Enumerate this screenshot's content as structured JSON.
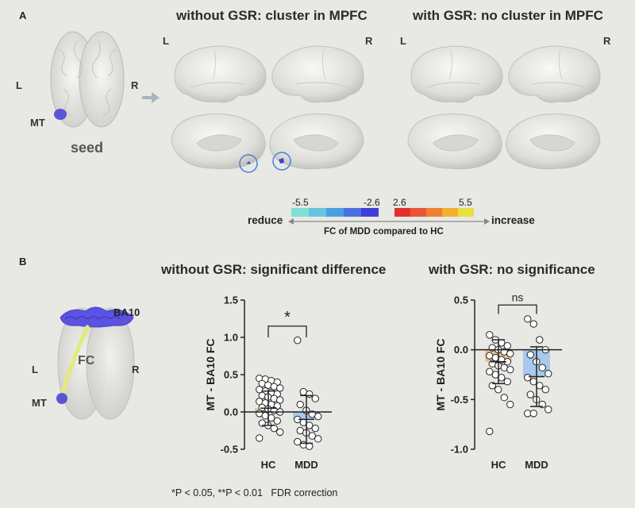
{
  "panelA": {
    "letter": "A",
    "seed_label": "seed",
    "mt_label": "MT",
    "L": "L",
    "R": "R",
    "title_left": "without GSR: cluster in MPFC",
    "title_right": "with GSR: no cluster in MPFC",
    "brain_L": "L",
    "brain_R": "R",
    "colorbar": {
      "neg_min": "-5.5",
      "neg_max": "-2.6",
      "pos_min": "2.6",
      "pos_max": "5.5",
      "neg_colors": [
        "#7fe0d8",
        "#66c6e0",
        "#4b9ee0",
        "#4a6fe0",
        "#3d3fd8"
      ],
      "pos_colors": [
        "#e23030",
        "#e85636",
        "#ee8030",
        "#f0b030",
        "#e8e040"
      ],
      "reduce_label": "reduce",
      "increase_label": "increase",
      "caption": "FC of MDD compared to HC"
    }
  },
  "panelB": {
    "letter": "B",
    "ba10_label": "BA10",
    "fc_label": "FC",
    "mt_label": "MT",
    "L": "L",
    "R": "R",
    "title_left": "without GSR: significant difference",
    "title_right": "with GSR: no significance",
    "footnote": "*P < 0.05, **P < 0.01   FDR correction"
  },
  "chart_data": [
    {
      "type": "bar",
      "title": "without GSR: significant difference",
      "ylabel": "MT - BA10  FC",
      "categories": [
        "HC",
        "MDD"
      ],
      "values": [
        0.05,
        -0.1
      ],
      "sd": [
        0.23,
        0.32
      ],
      "bar_colors": [
        "#f0c090",
        "#a8c8ec"
      ],
      "ylim": [
        -0.5,
        1.5
      ],
      "yticks": [
        "1.5",
        "1.0",
        "0.5",
        "0.0",
        "-0.5"
      ],
      "ytick_values": [
        1.5,
        1.0,
        0.5,
        0.0,
        -0.5
      ],
      "significance": "*",
      "points": [
        [
          0.45,
          0.44,
          0.42,
          0.4,
          0.38,
          0.36,
          0.34,
          0.32,
          0.3,
          0.28,
          0.26,
          0.24,
          0.22,
          0.2,
          0.18,
          0.16,
          0.14,
          0.12,
          0.1,
          0.08,
          0.06,
          0.04,
          0.02,
          0.0,
          -0.02,
          -0.05,
          -0.08,
          -0.12,
          -0.15,
          -0.18,
          -0.22,
          -0.27,
          -0.35
        ],
        [
          0.96,
          0.27,
          0.24,
          0.18,
          0.1,
          0.02,
          -0.03,
          -0.06,
          -0.1,
          -0.14,
          -0.18,
          -0.22,
          -0.25,
          -0.28,
          -0.32,
          -0.36,
          -0.4,
          -0.44,
          -0.46
        ]
      ]
    },
    {
      "type": "bar",
      "title": "with GSR: no significance",
      "ylabel": "MT - BA10  FC",
      "categories": [
        "HC",
        "MDD"
      ],
      "values": [
        -0.12,
        -0.27
      ],
      "sd": [
        0.22,
        0.3
      ],
      "bar_colors": [
        "#f0c090",
        "#a8c8ec"
      ],
      "ylim": [
        -1.0,
        0.5
      ],
      "yticks": [
        "0.5",
        "0.0",
        "-0.5",
        "-1.0"
      ],
      "ytick_values": [
        0.5,
        0.0,
        -0.5,
        -1.0
      ],
      "significance": "ns",
      "points": [
        [
          0.15,
          0.1,
          0.07,
          0.04,
          0.02,
          0.0,
          -0.02,
          -0.04,
          -0.06,
          -0.08,
          -0.1,
          -0.12,
          -0.14,
          -0.16,
          -0.18,
          -0.2,
          -0.22,
          -0.25,
          -0.28,
          -0.32,
          -0.36,
          -0.4,
          -0.48,
          -0.55,
          -0.82
        ],
        [
          0.31,
          0.26,
          0.1,
          0.0,
          -0.05,
          -0.12,
          -0.18,
          -0.24,
          -0.28,
          -0.32,
          -0.36,
          -0.4,
          -0.45,
          -0.5,
          -0.55,
          -0.6,
          -0.64,
          -0.64
        ]
      ]
    }
  ]
}
